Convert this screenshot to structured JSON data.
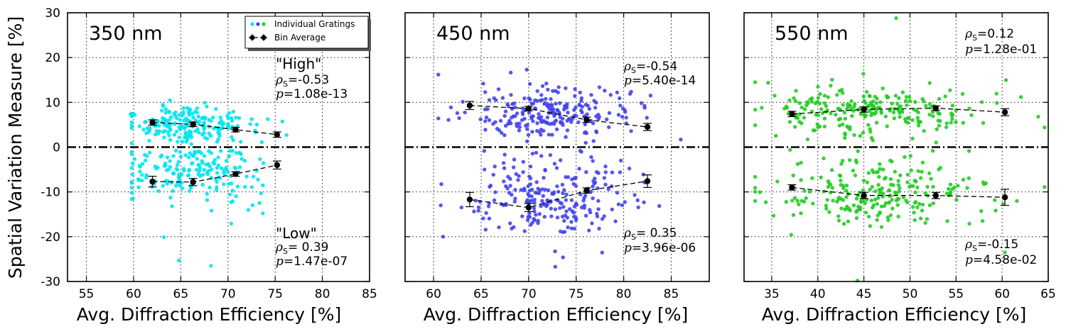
{
  "figure": {
    "ylabel": "Spatial Variation Measure [%]",
    "xlabel": "Avg. Diffraction Efficiency [%]",
    "legend": {
      "scatter_label": "Individual Gratings",
      "avg_label": "Bin Average"
    }
  },
  "chart_data": [
    {
      "type": "scatter",
      "title": "350 nm",
      "color": "#00e5ee",
      "xlim": [
        53,
        85
      ],
      "ylim": [
        -30,
        30
      ],
      "xticks": [
        55,
        60,
        65,
        70,
        75,
        80,
        85
      ],
      "yticks": [
        -30,
        -20,
        -10,
        0,
        10,
        20,
        30
      ],
      "show_yticklabels": true,
      "grid": true,
      "legend": "top-right",
      "center": 65.8,
      "spread_x": 3.6,
      "x_min": 59.8,
      "x_max": 77.5,
      "upper_mean": 5.0,
      "upper_sd": 2.0,
      "lower_mean": -6.0,
      "lower_sd": 3.6,
      "n_upper": 190,
      "n_lower": 190,
      "outliers": [
        [
          68.2,
          -26.5
        ],
        [
          64.8,
          -25.3
        ],
        [
          63.2,
          -20.1
        ],
        [
          73.7,
          -14.8
        ],
        [
          59.8,
          -10.2
        ],
        [
          59.7,
          7.4
        ]
      ],
      "bins_high": {
        "x": [
          62.0,
          66.3,
          70.8,
          75.2
        ],
        "y": [
          5.5,
          5.1,
          3.9,
          2.8
        ],
        "err": [
          0.6,
          0.5,
          0.5,
          0.6
        ]
      },
      "bins_low": {
        "x": [
          62.0,
          66.3,
          70.8,
          75.2
        ],
        "y": [
          -7.7,
          -7.8,
          -6.0,
          -4.0
        ],
        "err": [
          1.2,
          0.8,
          0.5,
          0.9
        ]
      },
      "annot_high": {
        "label": "\"High\"",
        "rho_sym": "ρ",
        "rho_sub": "S",
        "eq": "=",
        "rho_value": "-0.53",
        "p_sym": "p",
        "p_value": "1.08e-13"
      },
      "annot_low": {
        "label": "\"Low\"",
        "rho_sym": "ρ",
        "rho_sub": "S",
        "eq": "=",
        "rho_value": " 0.39",
        "p_sym": "p",
        "p_value": "1.47e-07"
      }
    },
    {
      "type": "scatter",
      "title": "450 nm",
      "color": "#4444ee",
      "xlim": [
        57,
        89
      ],
      "ylim": [
        -30,
        30
      ],
      "xticks": [
        60,
        65,
        70,
        75,
        80,
        85
      ],
      "yticks": [
        -30,
        -20,
        -10,
        0,
        10,
        20,
        30
      ],
      "show_yticklabels": false,
      "grid": true,
      "center": 72.5,
      "spread_x": 4.2,
      "x_min": 60.5,
      "x_max": 86.0,
      "upper_mean": 7.8,
      "upper_sd": 2.8,
      "lower_mean": -11.0,
      "lower_sd": 4.6,
      "n_upper": 230,
      "n_lower": 230,
      "outliers": [
        [
          60.5,
          16.2
        ],
        [
          69.8,
          17.3
        ],
        [
          72.8,
          -26.7
        ],
        [
          61.0,
          -20.0
        ],
        [
          86.0,
          1.7
        ]
      ],
      "bins_high": {
        "x": [
          63.8,
          70.0,
          76.1,
          82.5
        ],
        "y": [
          9.3,
          8.6,
          6.1,
          4.5
        ],
        "err": [
          0.9,
          0.5,
          0.6,
          0.8
        ]
      },
      "bins_low": {
        "x": [
          63.8,
          70.0,
          76.1,
          82.5
        ],
        "y": [
          -11.7,
          -13.5,
          -9.7,
          -7.6
        ],
        "err": [
          1.6,
          0.9,
          0.6,
          1.4
        ]
      },
      "annot_high": {
        "rho_sym": "ρ",
        "rho_sub": "S",
        "eq": "=",
        "rho_value": "-0.54",
        "p_sym": "p",
        "p_value": "5.40e-14"
      },
      "annot_low": {
        "rho_sym": "ρ",
        "rho_sub": "S",
        "eq": "=",
        "rho_value": " 0.35",
        "p_sym": "p",
        "p_value": "3.96e-06"
      }
    },
    {
      "type": "scatter",
      "title": "550 nm",
      "color": "#22cc22",
      "xlim": [
        32,
        65
      ],
      "ylim": [
        -30,
        30
      ],
      "xticks": [
        35,
        40,
        45,
        50,
        55,
        60,
        65
      ],
      "yticks": [
        -30,
        -20,
        -10,
        0,
        10,
        20,
        30
      ],
      "show_yticklabels": false,
      "grid": true,
      "center": 46.0,
      "spread_x": 6.0,
      "x_min": 33.2,
      "x_max": 64.6,
      "upper_mean": 8.2,
      "upper_sd": 2.9,
      "lower_mean": -10.2,
      "lower_sd": 3.8,
      "n_upper": 230,
      "n_lower": 230,
      "outliers": [
        [
          48.5,
          28.8
        ],
        [
          44.3,
          -29.8
        ],
        [
          33.2,
          14.5
        ],
        [
          64.6,
          4.4
        ],
        [
          64.6,
          -8.9
        ],
        [
          60.3,
          -23.5
        ]
      ],
      "bins_high": {
        "x": [
          37.2,
          45.0,
          52.8,
          60.3
        ],
        "y": [
          7.4,
          8.4,
          8.7,
          7.8
        ],
        "err": [
          0.6,
          0.6,
          0.5,
          0.8
        ]
      },
      "bins_low": {
        "x": [
          37.2,
          45.0,
          52.8,
          60.3
        ],
        "y": [
          -9.0,
          -10.8,
          -10.8,
          -11.2
        ],
        "err": [
          0.6,
          0.7,
          0.7,
          1.8
        ]
      },
      "annot_high": {
        "rho_sym": "ρ",
        "rho_sub": "S",
        "eq": "=",
        "rho_value": "0.12",
        "p_sym": "p",
        "p_value": "1.28e-01"
      },
      "annot_low": {
        "rho_sym": "ρ",
        "rho_sub": "S",
        "eq": "=",
        "rho_value": "-0.15",
        "p_sym": "p",
        "p_value": "4.58e-02"
      }
    }
  ]
}
